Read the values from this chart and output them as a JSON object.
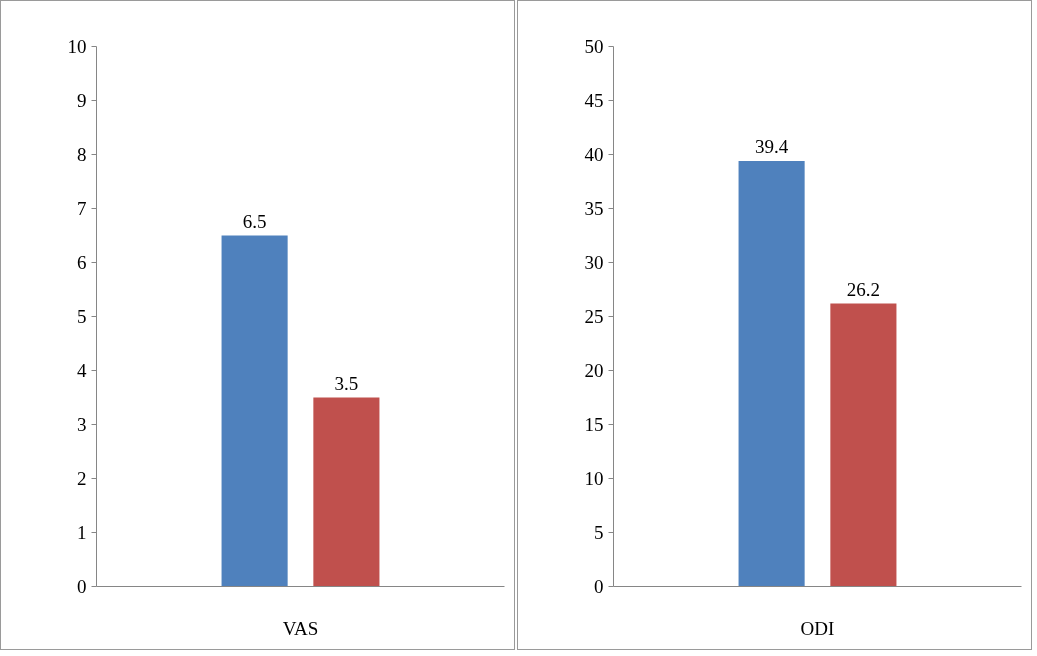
{
  "chart_data": [
    {
      "type": "bar",
      "categories": [
        "VAS"
      ],
      "series": [
        {
          "color": "#4f81bd",
          "values": [
            6.5
          ]
        },
        {
          "color": "#c0504d",
          "values": [
            3.5
          ]
        }
      ],
      "ylim": [
        0,
        10
      ],
      "yticks": [
        0,
        1,
        2,
        3,
        4,
        5,
        6,
        7,
        8,
        9,
        10
      ],
      "data_labels": true,
      "grid": false
    },
    {
      "type": "bar",
      "categories": [
        "ODI"
      ],
      "series": [
        {
          "color": "#4f81bd",
          "values": [
            39.4
          ]
        },
        {
          "color": "#c0504d",
          "values": [
            26.2
          ]
        }
      ],
      "ylim": [
        0,
        50
      ],
      "yticks": [
        0,
        5,
        10,
        15,
        20,
        25,
        30,
        35,
        40,
        45,
        50
      ],
      "data_labels": true,
      "grid": false
    }
  ]
}
